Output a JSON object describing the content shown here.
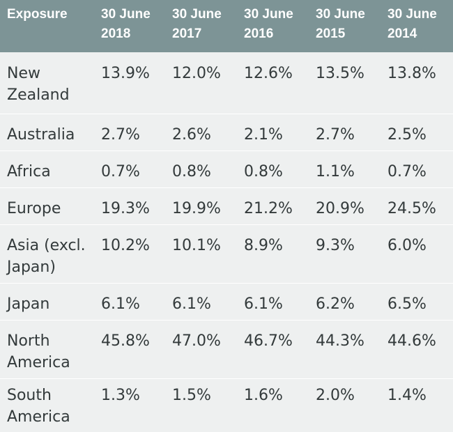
{
  "chart_data": {
    "type": "table",
    "columns": [
      "Exposure",
      "30 June\n2018",
      "30 June\n2017",
      "30 June\n2016",
      "30 June\n2015",
      "30 June\n2014"
    ],
    "rows": [
      {
        "label": "New\nZealand",
        "values": [
          "13.9%",
          "12.0%",
          "12.6%",
          "13.5%",
          "13.8%"
        ]
      },
      {
        "label": "Australia",
        "values": [
          "2.7%",
          "2.6%",
          "2.1%",
          "2.7%",
          "2.5%"
        ]
      },
      {
        "label": "Africa",
        "values": [
          "0.7%",
          "0.8%",
          "0.8%",
          "1.1%",
          "0.7%"
        ]
      },
      {
        "label": "Europe",
        "values": [
          "19.3%",
          "19.9%",
          "21.2%",
          "20.9%",
          "24.5%"
        ]
      },
      {
        "label": "Asia (excl.\nJapan)",
        "values": [
          "10.2%",
          "10.1%",
          "8.9%",
          "9.3%",
          "6.0%"
        ]
      },
      {
        "label": "Japan",
        "values": [
          "6.1%",
          "6.1%",
          "6.1%",
          "6.2%",
          "6.5%"
        ]
      },
      {
        "label": "North\nAmerica",
        "values": [
          "45.8%",
          "47.0%",
          "46.7%",
          "44.3%",
          "44.6%"
        ]
      },
      {
        "label": "South\nAmerica",
        "values": [
          "1.3%",
          "1.5%",
          "1.6%",
          "2.0%",
          "1.4%"
        ]
      }
    ]
  },
  "colors": {
    "header_bg": "#7d9496",
    "header_text": "#ffffff",
    "body_bg": "#eef0f0",
    "body_text": "#333a3b",
    "row_divider": "#ffffff"
  }
}
